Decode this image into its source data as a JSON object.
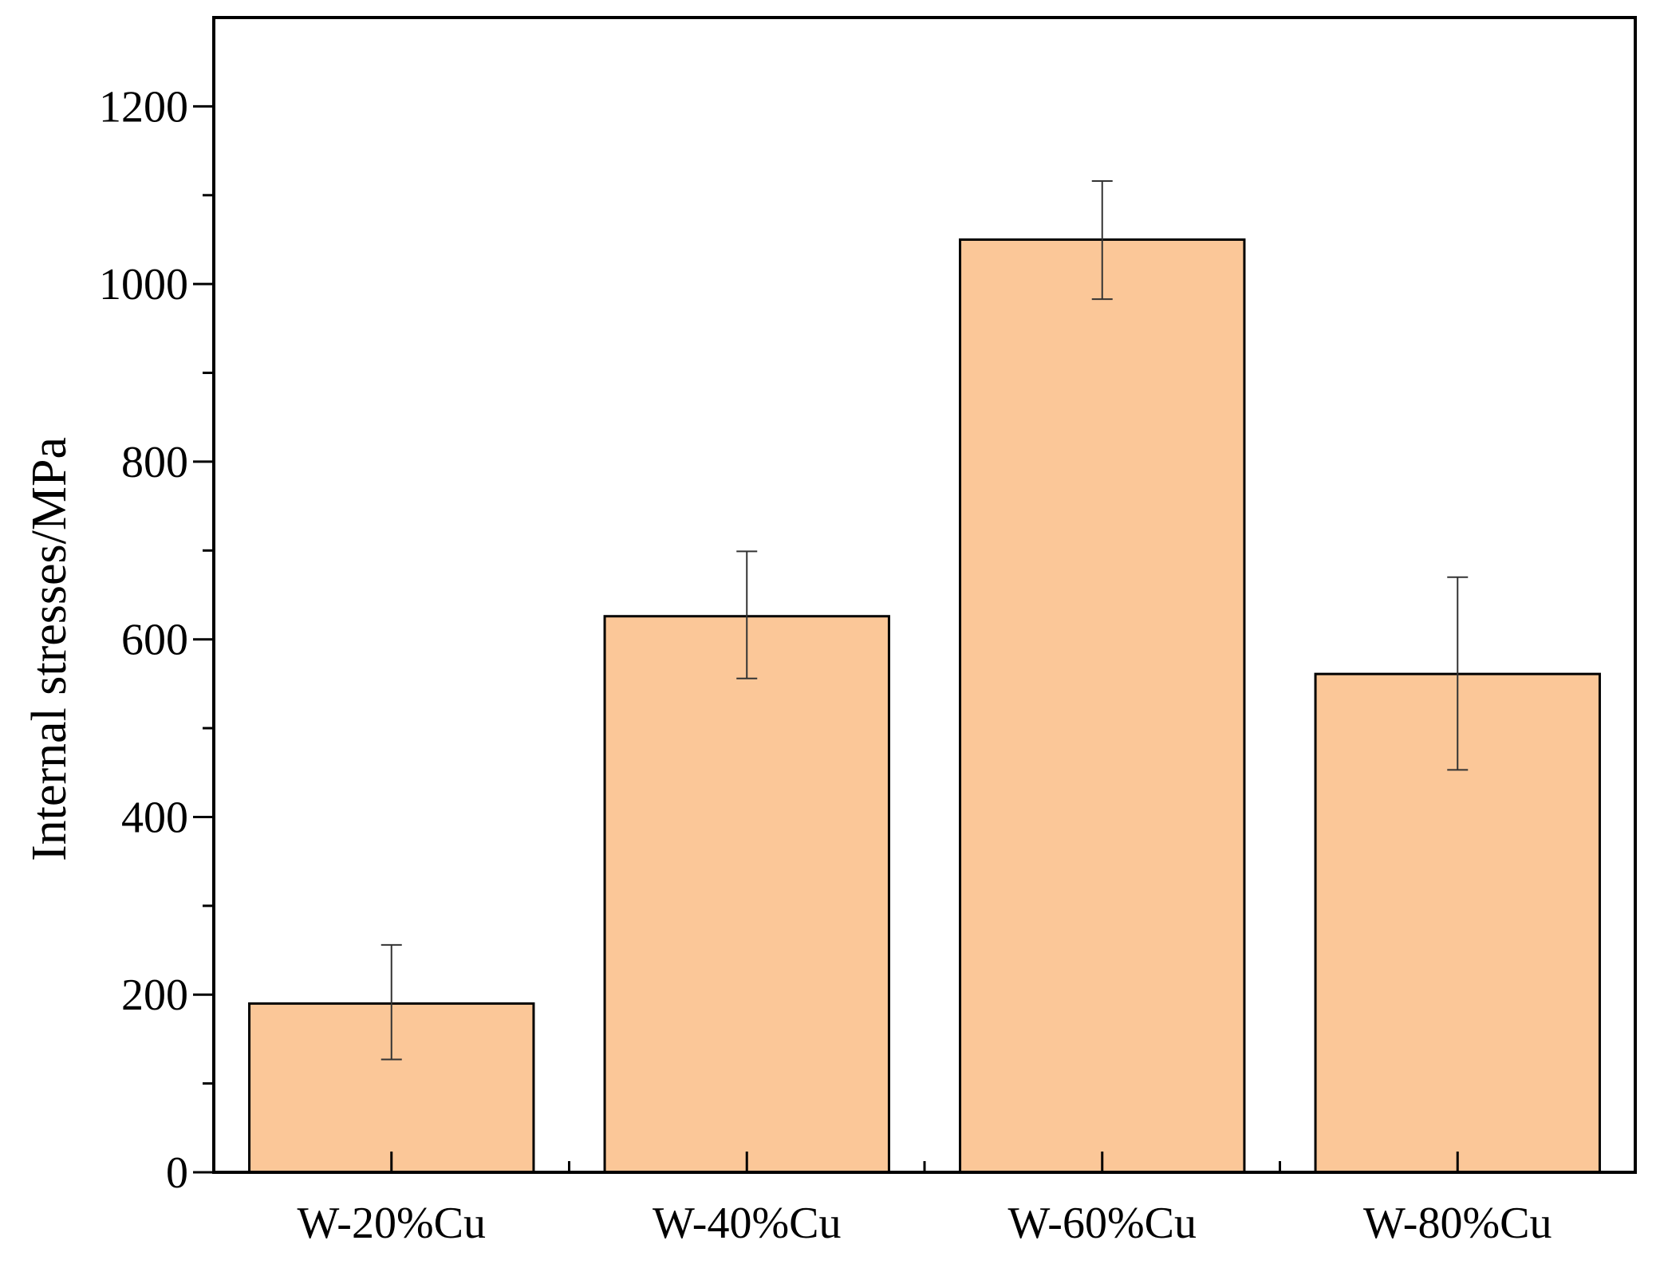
{
  "colors": {
    "bar_fill": "#fbc798",
    "bar_stroke": "#000000",
    "axis": "#000000",
    "error_bar": "#333333",
    "background": "#ffffff"
  },
  "chart_data": {
    "type": "bar",
    "title": "",
    "xlabel": "",
    "ylabel": "Internal stresses/MPa",
    "categories": [
      "W-20%Cu",
      "W-40%Cu",
      "W-60%Cu",
      "W-80%Cu"
    ],
    "values": [
      190,
      626,
      1050,
      561
    ],
    "error_lower": [
      127,
      556,
      983,
      453
    ],
    "error_upper": [
      256,
      699,
      1116,
      670
    ],
    "ylim": [
      0,
      1300
    ],
    "yticks": [
      0,
      200,
      400,
      600,
      800,
      1000,
      1200
    ],
    "y_minor_step": 100,
    "grid": false,
    "legend": "none"
  }
}
